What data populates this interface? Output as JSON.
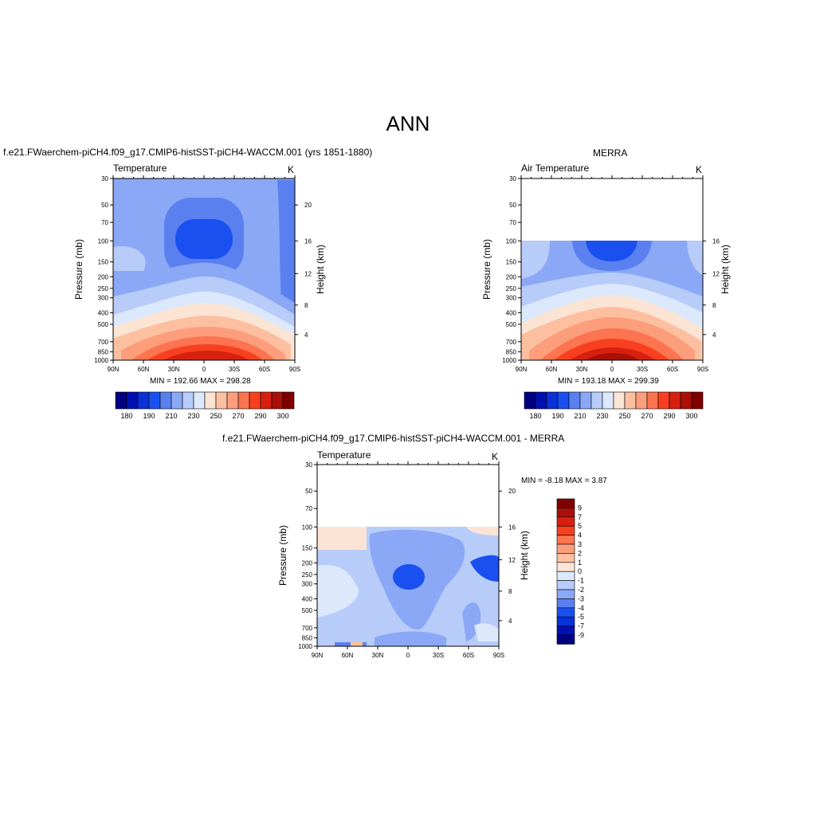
{
  "main_title": "ANN",
  "colors": {
    "abs": [
      "#000080",
      "#0010b0",
      "#0a30d8",
      "#1a50f0",
      "#5a80f0",
      "#8aa8f5",
      "#b8ccfa",
      "#dce8fc",
      "#fce4d4",
      "#fcc0a0",
      "#fc9e7c",
      "#fc7450",
      "#f84020",
      "#d82010",
      "#a81008",
      "#800000"
    ],
    "diff": [
      "#000080",
      "#0010b0",
      "#0a30d8",
      "#1a50f0",
      "#5a80f0",
      "#8aa8f5",
      "#b8ccfa",
      "#dce8fc",
      "#fce4d4",
      "#fcc0a0",
      "#fc9e7c",
      "#fc7450",
      "#f84020",
      "#d82010",
      "#a81008",
      "#800000"
    ]
  },
  "panels": {
    "model": {
      "title": "f.e21.FWaerchem-piCH4.f09_g17.CMIP6-histSST-piCH4-WACCM.001 (yrs 1851-1880)",
      "left_label": "Temperature",
      "units": "K",
      "minmax": "MIN = 192.66  MAX = 298.28"
    },
    "obs": {
      "title": "MERRA",
      "left_label": "Air Temperature",
      "units": "K",
      "minmax": "MIN = 193.18  MAX = 299.39"
    },
    "diff": {
      "title": "f.e21.FWaerchem-piCH4.f09_g17.CMIP6-histSST-piCH4-WACCM.001 - MERRA",
      "left_label": "Temperature",
      "units": "K",
      "minmax": "MIN =  -8.18  MAX =   3.87"
    }
  },
  "chart_data": [
    {
      "type": "heatmap",
      "name": "model",
      "xlabel": "",
      "ylabel": "Pressure (mb)",
      "y2label": "Height (km)",
      "x_ticks": [
        "90N",
        "60N",
        "30N",
        "0",
        "30S",
        "60S",
        "90S"
      ],
      "y_ticks": [
        30,
        50,
        70,
        100,
        150,
        200,
        250,
        300,
        400,
        500,
        700,
        850,
        1000
      ],
      "y2_ticks": [
        20,
        16,
        12,
        8,
        4
      ],
      "ylim": [
        30,
        1000
      ],
      "colorbar_levels": [
        180,
        190,
        210,
        230,
        250,
        270,
        290,
        300
      ],
      "min": 192.66,
      "max": 298.28
    },
    {
      "type": "heatmap",
      "name": "obs",
      "xlabel": "",
      "ylabel": "Pressure (mb)",
      "y2label": "Height (km)",
      "x_ticks": [
        "90N",
        "60N",
        "30N",
        "0",
        "30S",
        "60S",
        "90S"
      ],
      "y_ticks": [
        30,
        50,
        70,
        100,
        150,
        200,
        250,
        300,
        400,
        500,
        700,
        850,
        1000
      ],
      "y2_ticks": [
        16,
        12,
        8,
        4
      ],
      "ylim": [
        30,
        1000
      ],
      "colorbar_levels": [
        180,
        190,
        210,
        230,
        250,
        270,
        290,
        300
      ],
      "min": 193.18,
      "max": 299.39
    },
    {
      "type": "heatmap",
      "name": "diff",
      "xlabel": "",
      "ylabel": "Pressure (mb)",
      "y2label": "Height (km)",
      "x_ticks": [
        "90N",
        "60N",
        "30N",
        "0",
        "30S",
        "60S",
        "90S"
      ],
      "y_ticks": [
        30,
        50,
        70,
        100,
        150,
        200,
        250,
        300,
        400,
        500,
        700,
        850,
        1000
      ],
      "y2_ticks": [
        20,
        16,
        12,
        8,
        4
      ],
      "ylim": [
        30,
        1000
      ],
      "colorbar_levels": [
        9,
        7,
        5,
        4,
        3,
        2,
        1,
        0,
        -1,
        -2,
        -3,
        -4,
        -5,
        -7,
        -9
      ],
      "min": -8.18,
      "max": 3.87
    }
  ]
}
